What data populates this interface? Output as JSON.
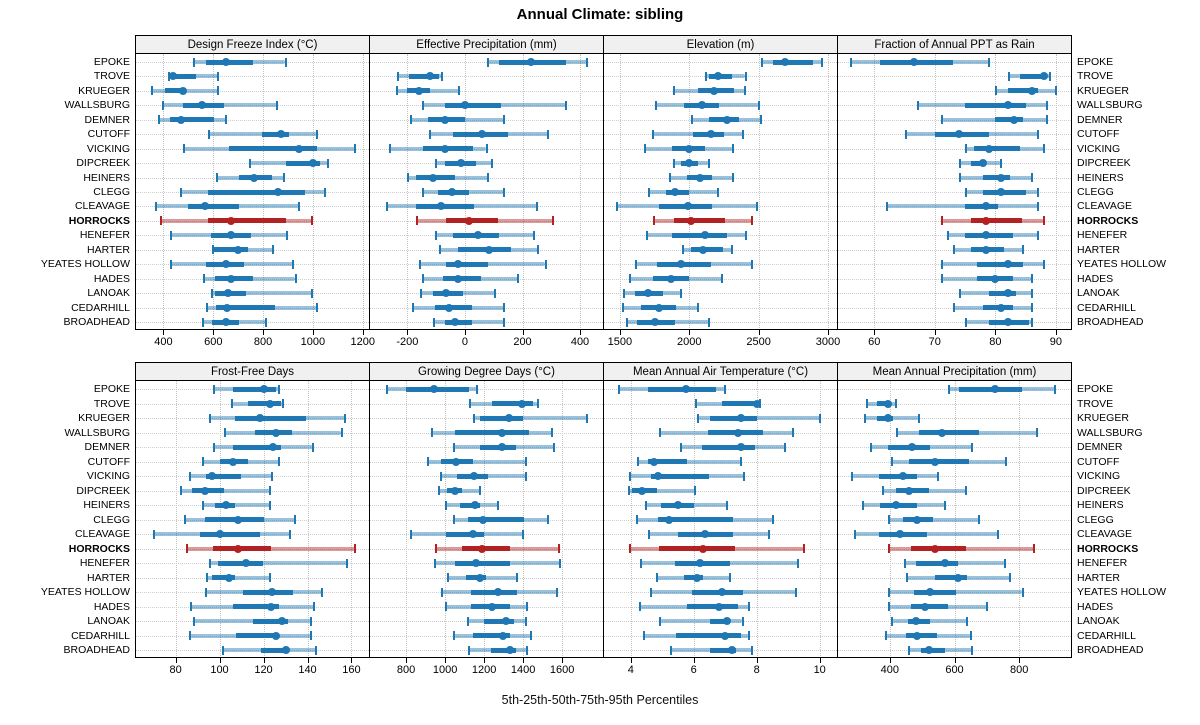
{
  "title": "Annual Climate: sibling",
  "caption": "5th-25th-50th-75th-95th Percentiles",
  "highlight_site": "HORROCKS",
  "colors": {
    "series": "#1f77b4",
    "series_band": "rgba(31,119,180,0.45)",
    "highlight": "#b22222",
    "highlight_band": "rgba(178,34,34,0.45)",
    "grid": "#c9c9c9",
    "header_bg": "#f0f0f0",
    "border": "#000000"
  },
  "sites": [
    "EPOKE",
    "TROVE",
    "KRUEGER",
    "WALLSBURG",
    "DEMNER",
    "CUTOFF",
    "VICKING",
    "DIPCREEK",
    "HEINERS",
    "CLEGG",
    "CLEAVAGE",
    "HORROCKS",
    "HENEFER",
    "HARTER",
    "YEATES HOLLOW",
    "HADES",
    "LANOAK",
    "CEDARHILL",
    "BROADHEAD"
  ],
  "chart_data": [
    {
      "type": "dotplot",
      "subtype": "percentile-interval",
      "title": "Design Freeze Index (°C)",
      "percentiles": [
        "5th",
        "25th",
        "50th",
        "75th",
        "95th"
      ],
      "ticks": [
        400,
        600,
        800,
        1000,
        1200
      ],
      "xlim": [
        290,
        1225
      ],
      "values": [
        [
          520,
          570,
          650,
          760,
          890
        ],
        [
          420,
          428,
          438,
          530,
          620
        ],
        [
          350,
          405,
          480,
          490,
          620
        ],
        [
          395,
          480,
          555,
          645,
          855
        ],
        [
          380,
          425,
          470,
          605,
          650
        ],
        [
          580,
          795,
          870,
          905,
          1015
        ],
        [
          480,
          665,
          945,
          1015,
          1170
        ],
        [
          745,
          890,
          1000,
          1030,
          1060
        ],
        [
          610,
          705,
          765,
          835,
          885
        ],
        [
          465,
          580,
          860,
          970,
          1050
        ],
        [
          365,
          500,
          565,
          705,
          945
        ],
        [
          385,
          580,
          670,
          890,
          995
        ],
        [
          425,
          590,
          670,
          750,
          895
        ],
        [
          595,
          600,
          700,
          740,
          840
        ],
        [
          425,
          570,
          650,
          725,
          920
        ],
        [
          560,
          605,
          670,
          760,
          930
        ],
        [
          590,
          605,
          660,
          730,
          995
        ],
        [
          570,
          610,
          655,
          850,
          1015
        ],
        [
          555,
          595,
          650,
          705,
          810
        ]
      ]
    },
    {
      "type": "dotplot",
      "subtype": "percentile-interval",
      "title": "Effective Precipitation (mm)",
      "percentiles": [
        "5th",
        "25th",
        "50th",
        "75th",
        "95th"
      ],
      "ticks": [
        -200,
        0,
        200,
        400
      ],
      "xlim": [
        -330,
        480
      ],
      "values": [
        [
          75,
          120,
          230,
          350,
          425
        ],
        [
          -235,
          -195,
          -120,
          -90,
          -80
        ],
        [
          -240,
          -200,
          -160,
          -120,
          -20
        ],
        [
          -150,
          -70,
          0,
          125,
          350
        ],
        [
          -190,
          -130,
          -70,
          0,
          135
        ],
        [
          -125,
          -40,
          60,
          150,
          290
        ],
        [
          -265,
          -145,
          -70,
          30,
          75
        ],
        [
          -105,
          -70,
          -15,
          40,
          95
        ],
        [
          -200,
          -170,
          -110,
          -35,
          80
        ],
        [
          -150,
          -95,
          -45,
          15,
          135
        ],
        [
          -275,
          -170,
          -85,
          30,
          250
        ],
        [
          -170,
          -65,
          15,
          115,
          305
        ],
        [
          -105,
          -40,
          45,
          120,
          240
        ],
        [
          -90,
          -25,
          85,
          160,
          255
        ],
        [
          -160,
          -65,
          -25,
          80,
          280
        ],
        [
          -150,
          -75,
          -25,
          55,
          185
        ],
        [
          -155,
          -110,
          -65,
          -5,
          105
        ],
        [
          -185,
          -105,
          -55,
          25,
          135
        ],
        [
          -110,
          -70,
          -35,
          25,
          135
        ]
      ]
    },
    {
      "type": "dotplot",
      "subtype": "percentile-interval",
      "title": "Elevation (m)",
      "percentiles": [
        "5th",
        "25th",
        "50th",
        "75th",
        "95th"
      ],
      "ticks": [
        1500,
        2000,
        2500,
        3000
      ],
      "xlim": [
        1385,
        3065
      ],
      "values": [
        [
          2520,
          2600,
          2690,
          2890,
          2955
        ],
        [
          2110,
          2145,
          2210,
          2310,
          2405
        ],
        [
          1885,
          2060,
          2175,
          2325,
          2400
        ],
        [
          1755,
          1965,
          2090,
          2215,
          2500
        ],
        [
          2010,
          2145,
          2270,
          2360,
          2520
        ],
        [
          1730,
          2025,
          2155,
          2250,
          2385
        ],
        [
          1675,
          1875,
          1995,
          2115,
          2315
        ],
        [
          1885,
          1940,
          2000,
          2060,
          2145
        ],
        [
          1850,
          1980,
          2075,
          2165,
          2315
        ],
        [
          1705,
          1830,
          1895,
          1995,
          2210
        ],
        [
          1470,
          1780,
          1990,
          2165,
          2485
        ],
        [
          1740,
          1890,
          2015,
          2260,
          2450
        ],
        [
          1690,
          1875,
          2115,
          2270,
          2410
        ],
        [
          1945,
          2010,
          2100,
          2245,
          2310
        ],
        [
          1610,
          1770,
          1940,
          2155,
          2450
        ],
        [
          1565,
          1740,
          1870,
          1995,
          2235
        ],
        [
          1525,
          1605,
          1705,
          1810,
          1940
        ],
        [
          1515,
          1650,
          1780,
          1905,
          2060
        ],
        [
          1540,
          1620,
          1750,
          1900,
          2145
        ]
      ]
    },
    {
      "type": "dotplot",
      "subtype": "percentile-interval",
      "title": "Fraction of Annual PPT as Rain",
      "percentiles": [
        "5th",
        "25th",
        "50th",
        "75th",
        "95th"
      ],
      "ticks": [
        60,
        70,
        80,
        90
      ],
      "xlim": [
        54,
        92.5
      ],
      "values": [
        [
          56,
          61,
          66.5,
          73,
          79
        ],
        [
          82,
          84,
          88,
          88.5,
          89
        ],
        [
          80,
          82,
          86,
          87,
          90
        ],
        [
          67,
          75,
          82,
          85,
          88.5
        ],
        [
          71,
          80,
          83,
          84.5,
          88.5
        ],
        [
          65,
          70,
          74,
          79,
          87
        ],
        [
          75,
          76.5,
          79,
          84,
          88
        ],
        [
          74,
          76,
          78,
          78.5,
          81
        ],
        [
          74,
          78,
          81,
          82.5,
          86
        ],
        [
          75,
          78,
          81,
          85,
          87
        ],
        [
          62,
          75,
          78.5,
          80.5,
          87
        ],
        [
          71,
          76,
          78.5,
          84.5,
          88
        ],
        [
          72,
          75,
          78.5,
          83,
          87
        ],
        [
          73,
          76,
          78.5,
          81.5,
          84.5
        ],
        [
          71,
          77,
          82,
          84.5,
          88
        ],
        [
          71,
          77,
          80,
          83,
          86
        ],
        [
          74,
          79,
          82,
          83.5,
          86
        ],
        [
          73,
          78,
          81,
          83,
          86
        ],
        [
          75,
          79,
          82,
          85.5,
          86
        ]
      ]
    },
    {
      "type": "dotplot",
      "subtype": "percentile-interval",
      "title": "Frost-Free Days",
      "percentiles": [
        "5th",
        "25th",
        "50th",
        "75th",
        "95th"
      ],
      "ticks": [
        80,
        100,
        120,
        140,
        160
      ],
      "xlim": [
        62,
        168
      ],
      "values": [
        [
          97,
          106,
          120,
          125.5,
          127
        ],
        [
          105,
          113,
          123,
          128,
          129
        ],
        [
          95,
          107,
          118.5,
          139.5,
          157
        ],
        [
          102,
          116,
          125.5,
          133,
          155.5
        ],
        [
          97,
          106,
          124.5,
          128,
          142.5
        ],
        [
          92,
          100,
          106,
          113,
          127
        ],
        [
          86,
          94,
          96.5,
          110,
          124
        ],
        [
          82,
          87.5,
          93.5,
          102,
          123
        ],
        [
          92,
          98,
          103,
          107,
          123
        ],
        [
          84,
          93.5,
          108.5,
          120.5,
          134.5
        ],
        [
          69.5,
          91,
          100,
          118.5,
          132
        ],
        [
          84.5,
          97,
          108.5,
          123.5,
          161.5
        ],
        [
          95,
          99.5,
          112,
          120,
          158
        ],
        [
          94,
          96.5,
          104.5,
          107,
          123
        ],
        [
          93.5,
          110.5,
          124,
          133.5,
          146.5
        ],
        [
          86.5,
          106,
          123.5,
          127,
          143
        ],
        [
          88,
          115,
          128.5,
          131,
          141.5
        ],
        [
          86,
          107.5,
          125.5,
          126.5,
          141.5
        ],
        [
          101,
          119,
          130,
          131.5,
          144
        ]
      ]
    },
    {
      "type": "dotplot",
      "subtype": "percentile-interval",
      "title": "Growing Degree Days (°C)",
      "percentiles": [
        "5th",
        "25th",
        "50th",
        "75th",
        "95th"
      ],
      "ticks": [
        800,
        1000,
        1200,
        1400,
        1600
      ],
      "xlim": [
        615,
        1810
      ],
      "values": [
        [
          695,
          800,
          945,
          1125,
          1165
        ],
        [
          1120,
          1240,
          1395,
          1450,
          1475
        ],
        [
          1145,
          1180,
          1330,
          1400,
          1730
        ],
        [
          930,
          1050,
          1290,
          1430,
          1550
        ],
        [
          1040,
          1180,
          1290,
          1365,
          1560
        ],
        [
          905,
          980,
          1055,
          1145,
          1415
        ],
        [
          975,
          1060,
          1150,
          1220,
          1415
        ],
        [
          965,
          1010,
          1050,
          1085,
          1180
        ],
        [
          1000,
          1075,
          1155,
          1180,
          1270
        ],
        [
          1040,
          1115,
          1195,
          1405,
          1530
        ],
        [
          820,
          1005,
          1145,
          1200,
          1400
        ],
        [
          950,
          1085,
          1190,
          1335,
          1585
        ],
        [
          945,
          1050,
          1160,
          1335,
          1590
        ],
        [
          1010,
          1105,
          1178,
          1210,
          1370
        ],
        [
          980,
          1135,
          1270,
          1370,
          1575
        ],
        [
          1000,
          1135,
          1240,
          1335,
          1420
        ],
        [
          1110,
          1200,
          1310,
          1355,
          1415
        ],
        [
          1040,
          1145,
          1295,
          1335,
          1440
        ],
        [
          1115,
          1235,
          1335,
          1365,
          1420
        ]
      ]
    },
    {
      "type": "dotplot",
      "subtype": "percentile-interval",
      "title": "Mean Annual Air Temperature (°C)",
      "percentiles": [
        "5th",
        "25th",
        "50th",
        "75th",
        "95th"
      ],
      "ticks": [
        4,
        6,
        8,
        10
      ],
      "xlim": [
        3.15,
        10.55
      ],
      "values": [
        [
          3.6,
          4.55,
          5.75,
          6.7,
          7.0
        ],
        [
          6.05,
          6.9,
          8.0,
          8.05,
          8.1
        ],
        [
          6.1,
          6.5,
          7.5,
          8.0,
          10.0
        ],
        [
          4.9,
          6.45,
          7.4,
          8.2,
          9.15
        ],
        [
          5.55,
          6.25,
          7.5,
          7.95,
          8.9
        ],
        [
          4.2,
          4.55,
          4.75,
          5.8,
          7.5
        ],
        [
          3.95,
          4.65,
          4.85,
          6.5,
          7.6
        ],
        [
          3.9,
          4.05,
          4.35,
          4.85,
          6.05
        ],
        [
          4.45,
          4.95,
          5.5,
          6.0,
          7.05
        ],
        [
          4.15,
          4.85,
          5.2,
          7.25,
          8.5
        ],
        [
          4.55,
          5.5,
          6.35,
          7.25,
          8.4
        ],
        [
          3.95,
          4.9,
          6.3,
          7.3,
          9.5
        ],
        [
          4.3,
          5.4,
          6.2,
          7.15,
          9.3
        ],
        [
          4.8,
          5.7,
          6.1,
          6.3,
          7.15
        ],
        [
          4.6,
          5.95,
          6.9,
          7.55,
          9.25
        ],
        [
          4.25,
          5.8,
          6.8,
          7.4,
          7.75
        ],
        [
          4.9,
          6.5,
          7.05,
          7.15,
          7.55
        ],
        [
          4.4,
          5.45,
          7.0,
          7.5,
          7.75
        ],
        [
          5.25,
          6.5,
          7.2,
          7.35,
          7.85
        ]
      ]
    },
    {
      "type": "dotplot",
      "subtype": "percentile-interval",
      "title": "Mean Annual Precipitation (mm)",
      "percentiles": [
        "5th",
        "25th",
        "50th",
        "75th",
        "95th"
      ],
      "ticks": [
        400,
        600,
        800
      ],
      "xlim": [
        240,
        960
      ],
      "values": [
        [
          580,
          615,
          725,
          810,
          910
        ],
        [
          325,
          360,
          395,
          405,
          420
        ],
        [
          320,
          360,
          395,
          410,
          490
        ],
        [
          420,
          490,
          560,
          675,
          855
        ],
        [
          340,
          395,
          470,
          525,
          655
        ],
        [
          405,
          460,
          540,
          645,
          760
        ],
        [
          280,
          365,
          440,
          485,
          550
        ],
        [
          375,
          420,
          460,
          520,
          635
        ],
        [
          315,
          370,
          420,
          485,
          570
        ],
        [
          395,
          440,
          485,
          535,
          675
        ],
        [
          290,
          365,
          430,
          515,
          735
        ],
        [
          395,
          465,
          540,
          635,
          845
        ],
        [
          445,
          480,
          570,
          610,
          755
        ],
        [
          450,
          540,
          610,
          640,
          770
        ],
        [
          395,
          475,
          525,
          605,
          810
        ],
        [
          395,
          465,
          510,
          580,
          700
        ],
        [
          405,
          455,
          480,
          525,
          640
        ],
        [
          385,
          450,
          485,
          545,
          650
        ],
        [
          455,
          495,
          520,
          570,
          655
        ]
      ]
    }
  ]
}
